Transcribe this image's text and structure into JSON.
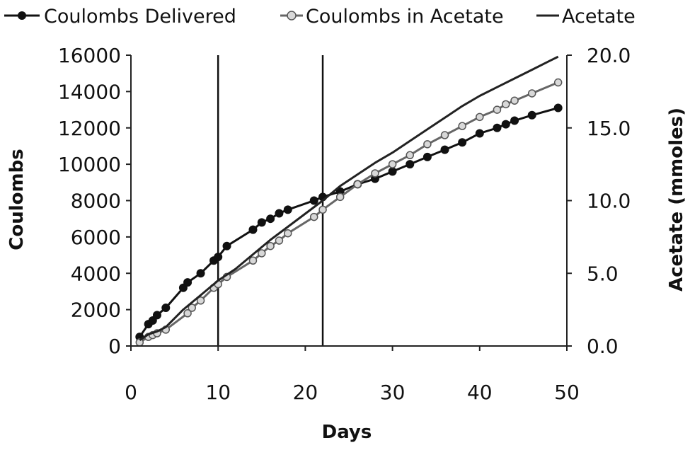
{
  "chart_data": {
    "type": "line",
    "xlabel": "Days",
    "ylabel": "Coulombs",
    "y2label": "Acetate (mmoles)",
    "xlim": [
      0,
      50
    ],
    "ylim": [
      0,
      16000
    ],
    "y2lim": [
      0,
      20
    ],
    "x_ticks": [
      "0",
      "10",
      "20",
      "30",
      "40",
      "50"
    ],
    "y_ticks": [
      "0",
      "2000",
      "4000",
      "6000",
      "8000",
      "10000",
      "12000",
      "14000",
      "16000"
    ],
    "y2_ticks": [
      "0.0",
      "5.0",
      "10.0",
      "15.0",
      "20.0"
    ],
    "vertical_lines": [
      10,
      22
    ],
    "grid": false,
    "legend_position": "top",
    "series": [
      {
        "name": "Coulombs Delivered",
        "axis": "left",
        "marker": "filled-circle",
        "color": "#111111",
        "x": [
          1,
          2,
          2.5,
          3,
          4,
          6,
          6.5,
          8,
          9.5,
          10,
          11,
          14,
          15,
          16,
          17,
          18,
          21,
          22,
          24,
          26,
          28,
          30,
          32,
          34,
          36,
          38,
          40,
          42,
          43,
          44,
          46,
          49
        ],
        "y": [
          500,
          1200,
          1400,
          1700,
          2100,
          3200,
          3500,
          4000,
          4700,
          4900,
          5500,
          6400,
          6800,
          7000,
          7300,
          7500,
          8000,
          8200,
          8500,
          8900,
          9200,
          9600,
          10000,
          10400,
          10800,
          11200,
          11700,
          12000,
          12200,
          12400,
          12700,
          13100
        ]
      },
      {
        "name": "Coulombs in Acetate",
        "axis": "left",
        "marker": "open-circle",
        "color": "#666666",
        "x": [
          1,
          2,
          2.5,
          3,
          4,
          6.5,
          7,
          8,
          9.5,
          10,
          11,
          14,
          15,
          16,
          17,
          18,
          21,
          22,
          24,
          26,
          28,
          30,
          32,
          34,
          36,
          38,
          40,
          42,
          43,
          44,
          46,
          49
        ],
        "y": [
          200,
          500,
          600,
          700,
          900,
          1800,
          2100,
          2500,
          3200,
          3400,
          3800,
          4700,
          5100,
          5500,
          5800,
          6200,
          7100,
          7500,
          8200,
          8900,
          9500,
          10000,
          10500,
          11100,
          11600,
          12100,
          12600,
          13000,
          13300,
          13500,
          13900,
          14500
        ]
      },
      {
        "name": "Acetate",
        "axis": "right",
        "marker": "none",
        "color": "#222222",
        "x": [
          1,
          2,
          3,
          4,
          6,
          8,
          10,
          12,
          14,
          16,
          18,
          20,
          22,
          24,
          26,
          28,
          30,
          32,
          34,
          36,
          38,
          40,
          42,
          44,
          46,
          48,
          49
        ],
        "y": [
          0.4,
          0.8,
          1.0,
          1.3,
          2.5,
          3.5,
          4.5,
          5.3,
          6.3,
          7.3,
          8.2,
          9.1,
          10.0,
          11.0,
          11.8,
          12.6,
          13.3,
          14.1,
          14.9,
          15.7,
          16.5,
          17.2,
          17.8,
          18.4,
          19.0,
          19.6,
          19.9
        ]
      }
    ]
  }
}
